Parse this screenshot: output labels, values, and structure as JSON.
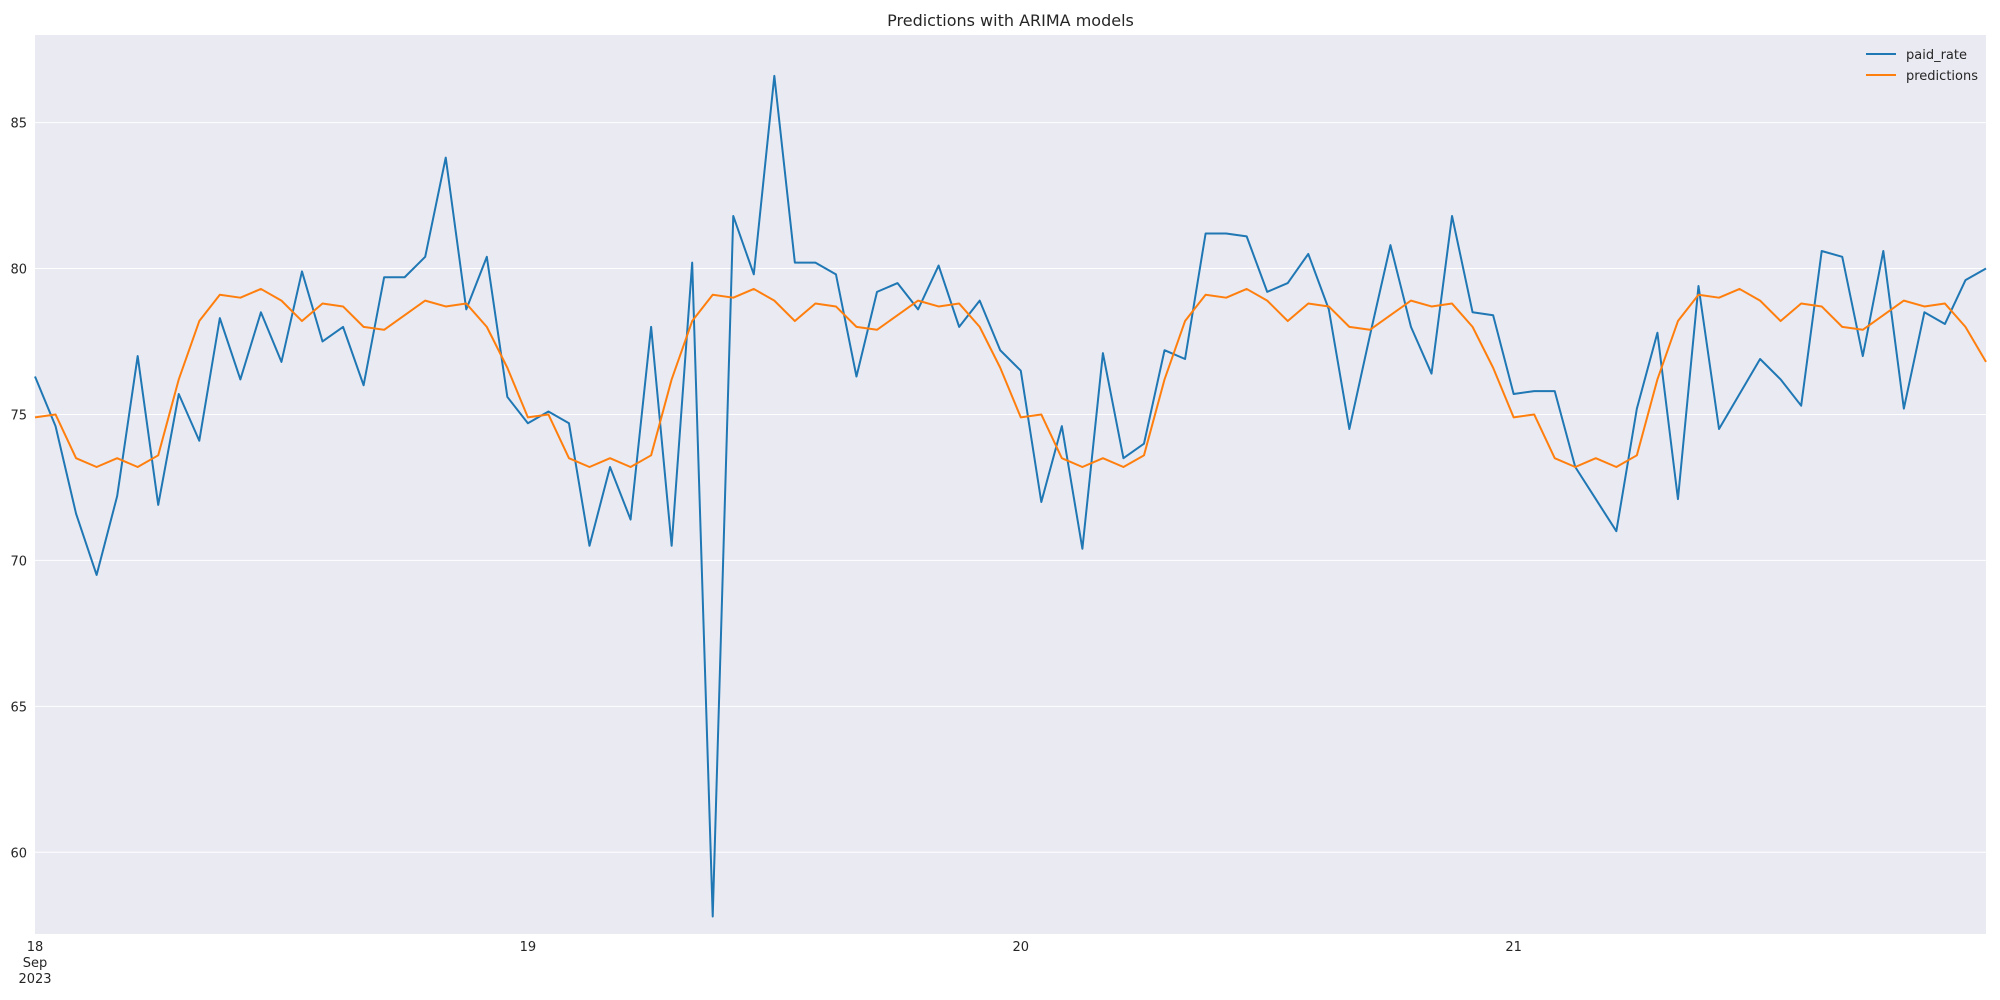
{
  "chart_data": {
    "type": "line",
    "title": "Predictions with ARIMA models",
    "xlabel": "",
    "ylabel": "",
    "grid": true,
    "legend_position": "top-right",
    "x_start": "2023-09-18T00:00",
    "x_step_hours": 1,
    "xlim": [
      "2023-09-18T00:00",
      "2023-09-21T23:00"
    ],
    "ylim": [
      57.2,
      88.0
    ],
    "y_ticks": [
      60,
      65,
      70,
      75,
      80,
      85
    ],
    "x_ticks": [
      {
        "x": "2023-09-18T00:00",
        "lines": [
          "18",
          "Sep",
          "2023"
        ]
      },
      {
        "x": "2023-09-19T00:00",
        "lines": [
          "19"
        ]
      },
      {
        "x": "2023-09-20T00:00",
        "lines": [
          "20"
        ]
      },
      {
        "x": "2023-09-21T00:00",
        "lines": [
          "21"
        ]
      }
    ],
    "series": [
      {
        "name": "paid_rate",
        "color": "#1f77b4",
        "values": [
          76.3,
          74.6,
          71.6,
          69.5,
          72.2,
          77.0,
          71.9,
          75.7,
          74.1,
          78.3,
          76.2,
          78.5,
          76.8,
          79.9,
          77.5,
          78.0,
          76.0,
          79.7,
          79.7,
          80.4,
          83.8,
          78.6,
          80.4,
          75.6,
          74.7,
          75.1,
          74.7,
          70.5,
          73.2,
          71.4,
          78.0,
          70.5,
          80.2,
          57.8,
          81.8,
          79.8,
          86.6,
          80.2,
          80.2,
          79.8,
          76.3,
          79.2,
          79.5,
          78.6,
          80.1,
          78.0,
          78.9,
          77.2,
          76.5,
          72.0,
          74.6,
          70.4,
          77.1,
          73.5,
          74.0,
          77.2,
          76.9,
          81.2,
          81.2,
          81.1,
          79.2,
          79.5,
          80.5,
          78.6,
          74.5,
          77.7,
          80.8,
          78.0,
          76.4,
          81.8,
          78.5,
          78.4,
          75.7,
          75.8,
          75.8,
          73.2,
          72.1,
          71.0,
          75.2,
          77.8,
          72.1,
          79.4,
          74.5,
          75.7,
          76.9,
          76.2,
          75.3,
          80.6,
          80.4,
          77.0,
          80.6,
          75.2,
          78.5,
          78.1,
          79.6,
          80.0
        ]
      },
      {
        "name": "predictions",
        "color": "#ff7f0e",
        "values": [
          74.9,
          75.0,
          73.5,
          73.2,
          73.5,
          73.2,
          73.6,
          76.2,
          78.2,
          79.1,
          79.0,
          79.3,
          78.9,
          78.2,
          78.8,
          78.7,
          78.0,
          77.9,
          78.4,
          78.9,
          78.7,
          78.8,
          78.0,
          76.6,
          74.9,
          75.0,
          73.5,
          73.2,
          73.5,
          73.2,
          73.6,
          76.2,
          78.2,
          79.1,
          79.0,
          79.3,
          78.9,
          78.2,
          78.8,
          78.7,
          78.0,
          77.9,
          78.4,
          78.9,
          78.7,
          78.8,
          78.0,
          76.6,
          74.9,
          75.0,
          73.5,
          73.2,
          73.5,
          73.2,
          73.6,
          76.2,
          78.2,
          79.1,
          79.0,
          79.3,
          78.9,
          78.2,
          78.8,
          78.7,
          78.0,
          77.9,
          78.4,
          78.9,
          78.7,
          78.8,
          78.0,
          76.6,
          74.9,
          75.0,
          73.5,
          73.2,
          73.5,
          73.2,
          73.6,
          76.2,
          78.2,
          79.1,
          79.0,
          79.3,
          78.9,
          78.2,
          78.8,
          78.7,
          78.0,
          77.9,
          78.4,
          78.9,
          78.7,
          78.8,
          78.0,
          76.8
        ]
      }
    ]
  }
}
